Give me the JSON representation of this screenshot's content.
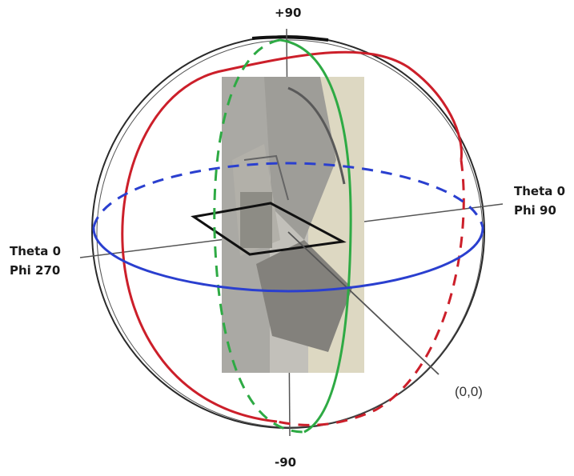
{
  "labels": {
    "top": "+90",
    "bottom": "-90",
    "right_line1": "Theta 0",
    "right_line2": "Phi 90",
    "left_line1": "Theta 0",
    "left_line2": "Phi 270",
    "origin": "(0,0)"
  },
  "colors": {
    "outline": "#2a2a2a",
    "red_meridian": "#cc1f2a",
    "green_meridian": "#2eaa44",
    "blue_equator": "#2a3fcf",
    "axis": "#555555"
  },
  "icons": {
    "center_image": "device-photo-icon",
    "plane": "antenna-plane-icon"
  }
}
